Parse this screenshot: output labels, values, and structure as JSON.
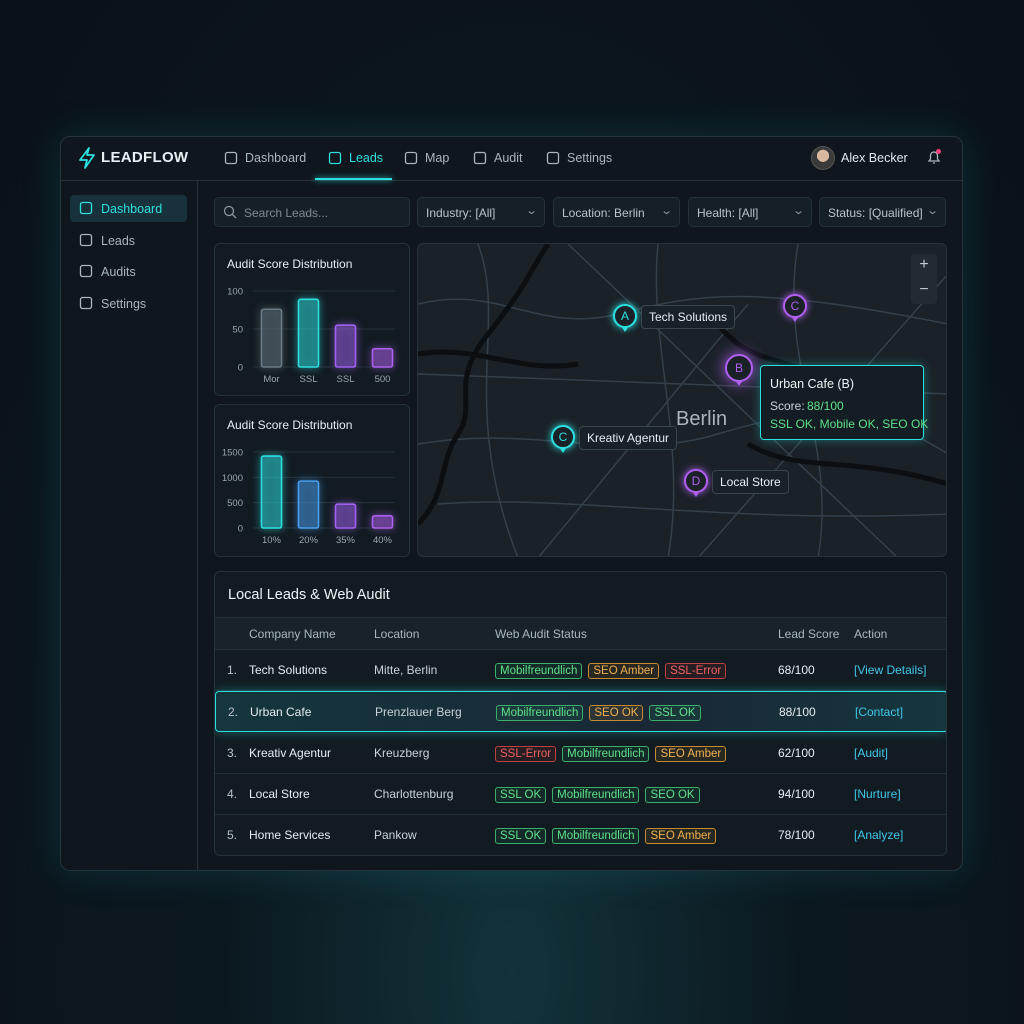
{
  "brand": "LEADFLOW",
  "nav": [
    {
      "label": "Dashboard",
      "active": false
    },
    {
      "label": "Leads",
      "active": true
    },
    {
      "label": "Map",
      "active": false
    },
    {
      "label": "Audit",
      "active": false
    },
    {
      "label": "Settings",
      "active": false
    }
  ],
  "user": "Alex Becker",
  "sidebar": [
    {
      "label": "Dashboard",
      "active": true
    },
    {
      "label": "Leads",
      "active": false
    },
    {
      "label": "Audits",
      "active": false
    },
    {
      "label": "Settings",
      "active": false
    }
  ],
  "search_placeholder": "Search Leads...",
  "filters": [
    "Industry: [All]",
    "Location: Berlin",
    "Health: [All]",
    "Status: [Qualified]"
  ],
  "charts": [
    {
      "type": "bar",
      "title": "Audit Score Distribution",
      "categories": [
        "Mor",
        "SSL",
        "SSL",
        "500"
      ],
      "values": [
        76,
        89,
        55,
        24
      ],
      "colors": [
        "#6b7a84",
        "#2de0e0",
        "#a060f0",
        "#b060f0"
      ],
      "ylim": [
        0,
        100
      ],
      "yticks": [
        0,
        50,
        100
      ]
    },
    {
      "type": "bar",
      "title": "Audit Score Distribution",
      "categories": [
        "10%",
        "20%",
        "35%",
        "40%"
      ],
      "values": [
        1420,
        925,
        470,
        240
      ],
      "colors": [
        "#2de0e0",
        "#4aa0f0",
        "#a060f0",
        "#b060f0"
      ],
      "ylim": [
        0,
        1500
      ],
      "yticks": [
        0,
        500,
        1000,
        1500
      ]
    }
  ],
  "map": {
    "city": "Berlin",
    "zoom": [
      "+",
      "−"
    ],
    "pins": [
      {
        "letter": "A",
        "label": "Tech Solutions",
        "color": "#2de0e0"
      },
      {
        "letter": "C",
        "label": null,
        "color": "#b060f0"
      },
      {
        "letter": "B",
        "label": null,
        "color": "#b060f0"
      },
      {
        "letter": "C",
        "label": "Kreativ Agentur",
        "color": "#2de0e0"
      },
      {
        "letter": "D",
        "label": "Local Store",
        "color": "#b060f0"
      }
    ],
    "tooltip": {
      "title": "Urban Cafe (B)",
      "score_label": "Score:",
      "score": "88/100",
      "checks": "SSL OK, Mobile OK, SEO OK"
    }
  },
  "table": {
    "title": "Local Leads & Web Audit",
    "columns": [
      "Company Name",
      "Location",
      "Web Audit Status",
      "Lead Score",
      "Action"
    ],
    "rows": [
      {
        "index": "1.",
        "company": "Tech Solutions",
        "location": "Mitte, Berlin",
        "badges": [
          {
            "text": "Mobilfreundlich",
            "tone": "green"
          },
          {
            "text": "SEO Amber",
            "tone": "amber"
          },
          {
            "text": "SSL-Error",
            "tone": "red"
          }
        ],
        "score": "68/100",
        "action": "[View Details]",
        "selected": false
      },
      {
        "index": "2.",
        "company": "Urban Cafe",
        "location": "Prenzlauer Berg",
        "badges": [
          {
            "text": "Mobilfreundlich",
            "tone": "green"
          },
          {
            "text": "SEO OK",
            "tone": "amber"
          },
          {
            "text": "SSL OK",
            "tone": "green"
          }
        ],
        "score": "88/100",
        "action": "[Contact]",
        "selected": true
      },
      {
        "index": "3.",
        "company": "Kreativ Agentur",
        "location": "Kreuzberg",
        "badges": [
          {
            "text": "SSL-Error",
            "tone": "red"
          },
          {
            "text": "Mobilfreundlich",
            "tone": "green"
          },
          {
            "text": "SEO Amber",
            "tone": "amber"
          }
        ],
        "score": "62/100",
        "action": "[Audit]",
        "selected": false
      },
      {
        "index": "4.",
        "company": "Local Store",
        "location": "Charlottenburg",
        "badges": [
          {
            "text": "SSL OK",
            "tone": "green"
          },
          {
            "text": "Mobilfreundlich",
            "tone": "green"
          },
          {
            "text": "SEO OK",
            "tone": "green"
          }
        ],
        "score": "94/100",
        "action": "[Nurture]",
        "selected": false
      },
      {
        "index": "5.",
        "company": "Home Services",
        "location": "Pankow",
        "badges": [
          {
            "text": "SSL OK",
            "tone": "green"
          },
          {
            "text": "Mobilfreundlich",
            "tone": "green"
          },
          {
            "text": "SEO Amber",
            "tone": "amber"
          }
        ],
        "score": "78/100",
        "action": "[Analyze]",
        "selected": false
      }
    ]
  }
}
